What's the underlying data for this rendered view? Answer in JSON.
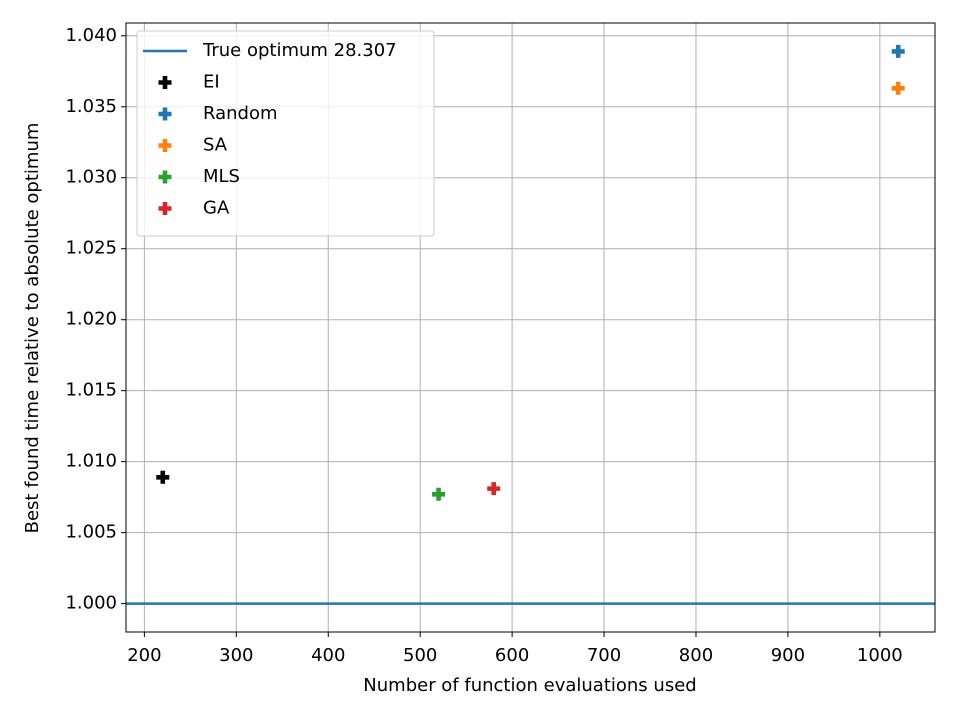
{
  "chart_data": {
    "type": "scatter",
    "xlabel": "Number of function evaluations used",
    "ylabel": "Best found time relative to absolute optimum",
    "xlim": [
      180,
      1060
    ],
    "ylim": [
      0.998,
      1.0409
    ],
    "xticks": [
      200,
      300,
      400,
      500,
      600,
      700,
      800,
      900,
      1000
    ],
    "yticks": [
      {
        "value": 1,
        "label": "1.000"
      },
      {
        "value": 1.005,
        "label": "1.005"
      },
      {
        "value": 1.01,
        "label": "1.010"
      },
      {
        "value": 1.015,
        "label": "1.015"
      },
      {
        "value": 1.02,
        "label": "1.020"
      },
      {
        "value": 1.025,
        "label": "1.025"
      },
      {
        "value": 1.03,
        "label": "1.030"
      },
      {
        "value": 1.035,
        "label": "1.035"
      },
      {
        "value": 1.04,
        "label": "1.040"
      }
    ],
    "grid": true,
    "legend": "upper left",
    "hline": {
      "name": "True optimum 28.307",
      "value": 1,
      "color": "#1f77b4"
    },
    "series": [
      {
        "name": "EI",
        "color": "#000000",
        "x": [
          220
        ],
        "values": [
          1.0089
        ]
      },
      {
        "name": "Random",
        "color": "#1f77b4",
        "x": [
          1020
        ],
        "values": [
          1.0389
        ]
      },
      {
        "name": "SA",
        "color": "#ff7f0e",
        "x": [
          1020
        ],
        "values": [
          1.0363
        ]
      },
      {
        "name": "MLS",
        "color": "#2ca02c",
        "x": [
          520
        ],
        "values": [
          1.0077
        ]
      },
      {
        "name": "GA",
        "color": "#d62728",
        "x": [
          580
        ],
        "values": [
          1.0081
        ]
      }
    ]
  }
}
